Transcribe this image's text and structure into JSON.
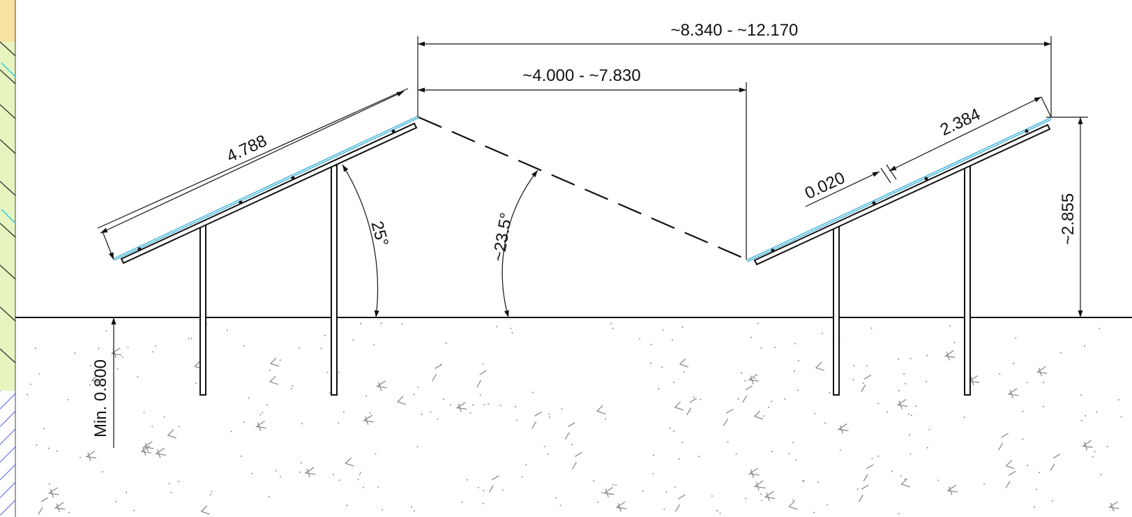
{
  "drawing": {
    "dimensions": {
      "overall_spacing": "~8.340 - ~12.170",
      "row_gap": "~4.000 - ~7.830",
      "panel_length": "4.788",
      "module_length": "2.384",
      "module_gap": "0.020",
      "tilt_angle": "25°",
      "shading_angle": "~23.5°",
      "top_height": "~2.855",
      "min_clearance": "Min. 0.800"
    },
    "colors": {
      "line": "#111111",
      "module": "#3ab0d8",
      "soil_texture": "#8a8a8a",
      "left_strip_yellow": "#f7e2a0",
      "left_strip_green": "#e6f5c0",
      "left_strip_hatch": "#2233dd"
    }
  }
}
